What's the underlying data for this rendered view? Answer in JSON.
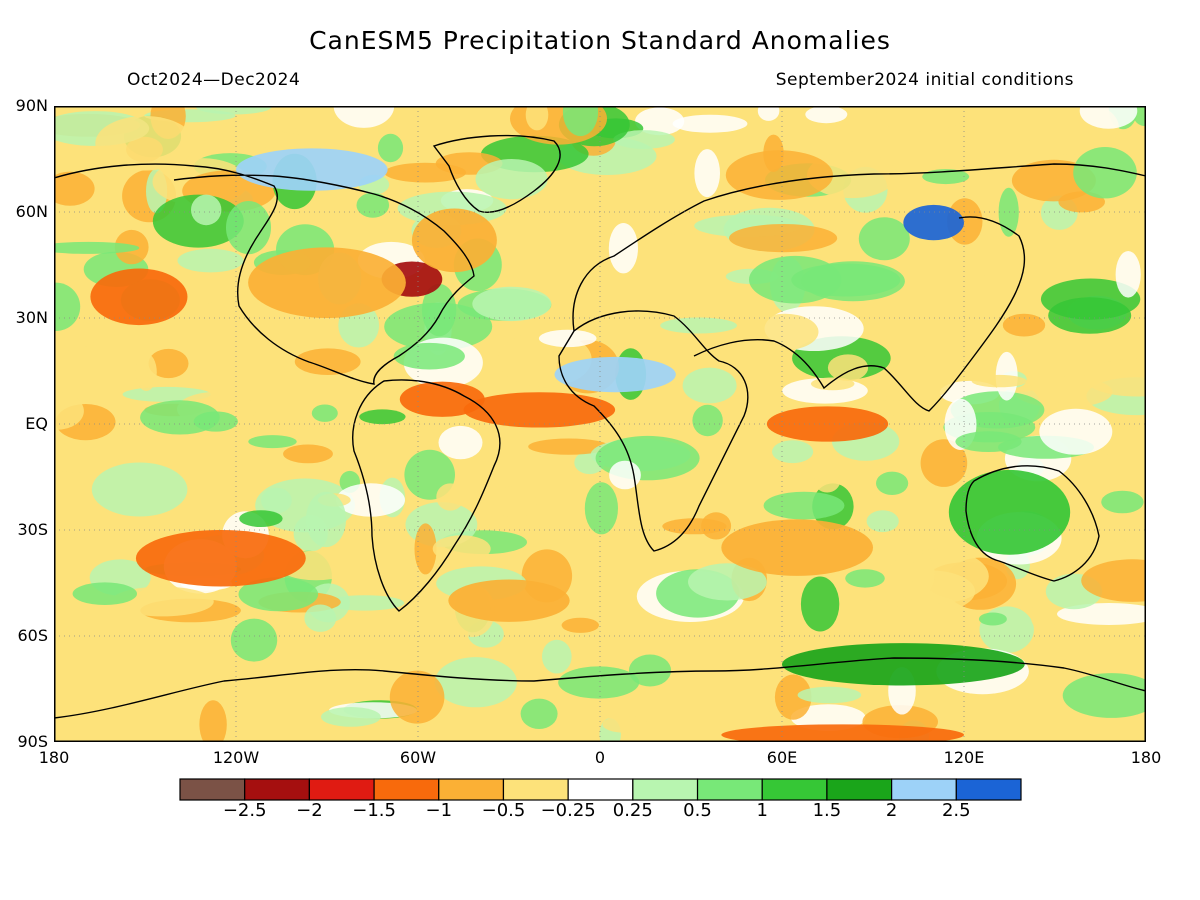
{
  "title": "CanESM5 Precipitation Standard Anomalies",
  "subtitle_left": "Oct2024—Dec2024",
  "subtitle_right": "September2024 initial conditions",
  "map": {
    "projection": "equirectangular",
    "lon_range": [
      -180,
      180
    ],
    "lat_range": [
      -90,
      90
    ],
    "lat_ticks": [
      {
        "lat": 90,
        "label": "90N"
      },
      {
        "lat": 60,
        "label": "60N"
      },
      {
        "lat": 30,
        "label": "30N"
      },
      {
        "lat": 0,
        "label": "EQ"
      },
      {
        "lat": -30,
        "label": "30S"
      },
      {
        "lat": -60,
        "label": "60S"
      },
      {
        "lat": -90,
        "label": "90S"
      }
    ],
    "lon_ticks": [
      {
        "lon": -180,
        "label": "180"
      },
      {
        "lon": -120,
        "label": "120W"
      },
      {
        "lon": -60,
        "label": "60W"
      },
      {
        "lon": 0,
        "label": "0"
      },
      {
        "lon": 60,
        "label": "60E"
      },
      {
        "lon": 120,
        "label": "120E"
      },
      {
        "lon": 180,
        "label": "180"
      }
    ],
    "grid": "dotted",
    "anomaly_regions": [
      {
        "name": "north-pacific-dry",
        "lon": -152,
        "lat": 36,
        "rx": 16,
        "ry": 8,
        "cat": 3
      },
      {
        "name": "us-east-dry",
        "lon": -62,
        "lat": 41,
        "rx": 10,
        "ry": 5,
        "cat": 1
      },
      {
        "name": "north-america-dry",
        "lon": -90,
        "lat": 40,
        "rx": 26,
        "ry": 10,
        "cat": 4
      },
      {
        "name": "north-atlantic-dry",
        "lon": -48,
        "lat": 52,
        "rx": 14,
        "ry": 9,
        "cat": 4
      },
      {
        "name": "canada-arctic-wet",
        "lon": -95,
        "lat": 72,
        "rx": 25,
        "ry": 6,
        "cat": 11
      },
      {
        "name": "sahel-wet",
        "lon": 5,
        "lat": 14,
        "rx": 20,
        "ry": 5,
        "cat": 11
      },
      {
        "name": "equatorial-atlantic-dry",
        "lon": -20,
        "lat": 4,
        "rx": 25,
        "ry": 5,
        "cat": 3
      },
      {
        "name": "amazon-dry",
        "lon": -52,
        "lat": 7,
        "rx": 14,
        "ry": 5,
        "cat": 3
      },
      {
        "name": "indian-ocean-dry",
        "lon": 75,
        "lat": 0,
        "rx": 20,
        "ry": 5,
        "cat": 3
      },
      {
        "name": "siberia-wet",
        "lon": 110,
        "lat": 57,
        "rx": 10,
        "ry": 5,
        "cat": 12
      },
      {
        "name": "south-pacific-dry",
        "lon": -125,
        "lat": -38,
        "rx": 28,
        "ry": 8,
        "cat": 3
      },
      {
        "name": "south-atlantic-dry",
        "lon": -30,
        "lat": -50,
        "rx": 20,
        "ry": 6,
        "cat": 4
      },
      {
        "name": "australia-wet",
        "lon": 135,
        "lat": -25,
        "rx": 20,
        "ry": 12,
        "cat": 9
      },
      {
        "name": "southern-ocean-wet",
        "lon": 100,
        "lat": -68,
        "rx": 40,
        "ry": 6,
        "cat": 10
      },
      {
        "name": "south-indian-dry",
        "lon": 65,
        "lat": -35,
        "rx": 25,
        "ry": 8,
        "cat": 4
      },
      {
        "name": "antarctic-dry",
        "lon": 80,
        "lat": -88,
        "rx": 40,
        "ry": 3,
        "cat": 3
      }
    ]
  },
  "legend": {
    "colors": [
      "#7b5246",
      "#a50f0f",
      "#e01b12",
      "#f86a0c",
      "#fbb035",
      "#fde27a",
      "#ffffff",
      "#b8f5b0",
      "#78e878",
      "#36c736",
      "#1aa51a",
      "#9dd2f8",
      "#1b64d6"
    ],
    "labels": [
      "−2.5",
      "−2",
      "−1.5",
      "−1",
      "−0.5",
      "−0.25",
      "0.25",
      "0.5",
      "1",
      "1.5",
      "2",
      "2.5"
    ]
  }
}
